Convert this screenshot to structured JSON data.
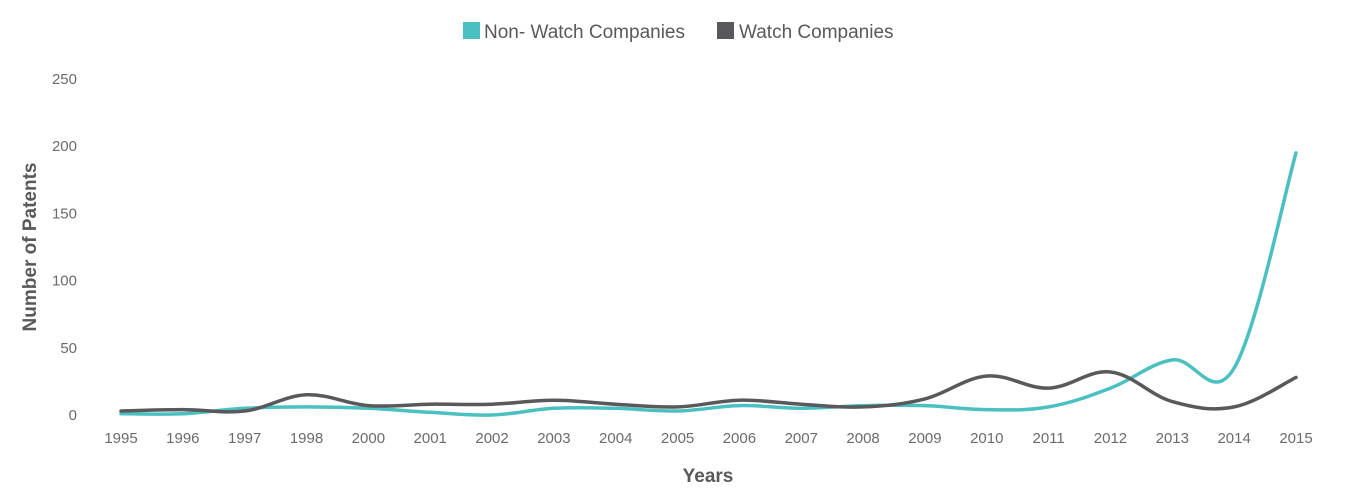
{
  "chart_data": {
    "type": "line",
    "title": "",
    "xlabel": "Years",
    "ylabel": "Number of Patents",
    "ylim": [
      0,
      250
    ],
    "yticks": [
      "0",
      "50",
      "100",
      "150",
      "200",
      "250"
    ],
    "x": [
      "1995",
      "1996",
      "1997",
      "1998",
      "2000",
      "2001",
      "2002",
      "2003",
      "2004",
      "2005",
      "2006",
      "2007",
      "2008",
      "2009",
      "2010",
      "2011",
      "2012",
      "2013",
      "2014",
      "2015"
    ],
    "grid": false,
    "legend_position": "top-center",
    "series": [
      {
        "name": "Non- Watch Companies",
        "color": "#4bc0c0",
        "values": [
          1,
          1,
          5,
          6,
          5,
          2,
          0,
          5,
          5,
          3,
          7,
          5,
          7,
          7,
          4,
          6,
          20,
          41,
          35,
          195
        ]
      },
      {
        "name": "Watch Companies",
        "color": "#59595c",
        "values": [
          3,
          4,
          3,
          15,
          7,
          8,
          8,
          11,
          8,
          6,
          11,
          8,
          6,
          12,
          29,
          20,
          32,
          10,
          6,
          28
        ]
      }
    ]
  }
}
